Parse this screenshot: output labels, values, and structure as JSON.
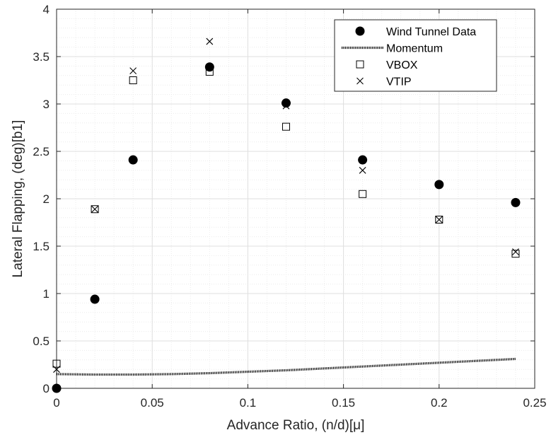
{
  "chart_data": {
    "type": "scatter",
    "title": "",
    "xlabel": "Advance Ratio, (n/d)[μ]",
    "ylabel": "Lateral Flapping, (deg)[b1]",
    "xlim": [
      0,
      0.25
    ],
    "ylim": [
      0,
      4
    ],
    "xticks": [
      0,
      0.05,
      0.1,
      0.15,
      0.2,
      0.25
    ],
    "xtick_labels": [
      "0",
      "0.05",
      "0.1",
      "0.15",
      "0.2",
      "0.25"
    ],
    "yticks": [
      0,
      0.5,
      1,
      1.5,
      2,
      2.5,
      3,
      3.5,
      4
    ],
    "ytick_labels": [
      "0",
      "0.5",
      "1",
      "1.5",
      "2",
      "2.5",
      "3",
      "3.5",
      "4"
    ],
    "grid": true,
    "minor_grid": true,
    "legend_position": "top-right",
    "series": [
      {
        "name": "Wind Tunnel Data",
        "marker": "filled-circle",
        "color": "#000000",
        "x": [
          0,
          0.02,
          0.04,
          0.08,
          0.12,
          0.16,
          0.2,
          0.24
        ],
        "y": [
          0.0,
          0.94,
          2.41,
          3.39,
          3.01,
          2.41,
          2.15,
          1.96
        ]
      },
      {
        "name": "Momentum",
        "marker": "dotted-line",
        "color": "#000000",
        "x": [
          0,
          0.02,
          0.04,
          0.06,
          0.08,
          0.1,
          0.12,
          0.14,
          0.16,
          0.18,
          0.2,
          0.22,
          0.24
        ],
        "y": [
          0.15,
          0.145,
          0.145,
          0.15,
          0.16,
          0.175,
          0.19,
          0.21,
          0.23,
          0.25,
          0.27,
          0.29,
          0.31
        ]
      },
      {
        "name": "VBOX",
        "marker": "open-square",
        "color": "#000000",
        "x": [
          0,
          0.02,
          0.04,
          0.08,
          0.12,
          0.16,
          0.2,
          0.24
        ],
        "y": [
          0.26,
          1.89,
          3.25,
          3.34,
          2.76,
          2.05,
          1.78,
          1.42
        ]
      },
      {
        "name": "VTIP",
        "marker": "x",
        "color": "#000000",
        "x": [
          0,
          0.02,
          0.04,
          0.08,
          0.12,
          0.16,
          0.2,
          0.24
        ],
        "y": [
          0.2,
          1.89,
          3.35,
          3.66,
          2.98,
          2.3,
          1.78,
          1.44
        ]
      }
    ]
  },
  "colors": {
    "background": "#ffffff",
    "axes": "#262626",
    "major_grid": "#dfdfdf",
    "minor_grid": "#ececec"
  }
}
